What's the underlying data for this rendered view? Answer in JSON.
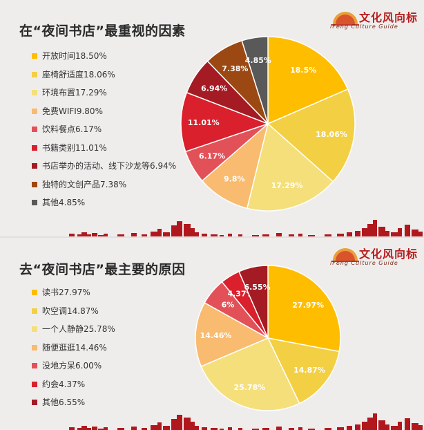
{
  "logo": {
    "cn": "文化风向标",
    "en": "iFeng Culture Guide"
  },
  "colors": {
    "c1": "#ffbd00",
    "c2": "#f3cf43",
    "c3": "#f5df7b",
    "c4": "#f8bb6f",
    "c5": "#e35158",
    "c6": "#d9202c",
    "c7": "#a51b24",
    "c8": "#9c4812",
    "c9": "#595959",
    "skyline": "#b0181d"
  },
  "chart_data": [
    {
      "type": "pie",
      "title": "在“夜间书店”最重视的因素",
      "legend_position": "left",
      "series": [
        {
          "legend": "开放时间18.50%",
          "label": "18.5%",
          "value": 18.5,
          "color": "#ffbd00"
        },
        {
          "legend": "座椅舒适度18.06%",
          "label": "18.06%",
          "value": 18.06,
          "color": "#f3cf43"
        },
        {
          "legend": "环境布置17.29%",
          "label": "17.29%",
          "value": 17.29,
          "color": "#f5df7b"
        },
        {
          "legend": "免费WIFI9.80%",
          "label": "9.8%",
          "value": 9.8,
          "color": "#f8bb6f"
        },
        {
          "legend": "饮料餐点6.17%",
          "label": "6.17%",
          "value": 6.17,
          "color": "#e35158"
        },
        {
          "legend": "书籍类别11.01%",
          "label": "11.01%",
          "value": 11.01,
          "color": "#d9202c"
        },
        {
          "legend": "书店举办的活动、线下沙龙等6.94%",
          "label": "6.94%",
          "value": 6.94,
          "color": "#a51b24"
        },
        {
          "legend": "独特的文创产品7.38%",
          "label": "7.38%",
          "value": 7.38,
          "color": "#9c4812"
        },
        {
          "legend": "其他4.85%",
          "label": "4.85%",
          "value": 4.85,
          "color": "#595959"
        }
      ]
    },
    {
      "type": "pie",
      "title": "去“夜间书店”最主要的原因",
      "legend_position": "left",
      "series": [
        {
          "legend": "读书27.97%",
          "label": "27.97%",
          "value": 27.97,
          "color": "#ffbd00"
        },
        {
          "legend": "吹空调14.87%",
          "label": "14.87%",
          "value": 14.87,
          "color": "#f3cf43"
        },
        {
          "legend": "一个人静静25.78%",
          "label": "25.78%",
          "value": 25.78,
          "color": "#f5df7b"
        },
        {
          "legend": "随便逛逛14.46%",
          "label": "14.46%",
          "value": 14.46,
          "color": "#f8bb6f"
        },
        {
          "legend": "没地方呆6.00%",
          "label": "6%",
          "value": 6.0,
          "color": "#e35158"
        },
        {
          "legend": "约会4.37%",
          "label": "4.37%",
          "value": 4.37,
          "color": "#d9202c"
        },
        {
          "legend": "其他6.55%",
          "label": "6.55%",
          "value": 6.55,
          "color": "#a51b24"
        }
      ]
    }
  ]
}
